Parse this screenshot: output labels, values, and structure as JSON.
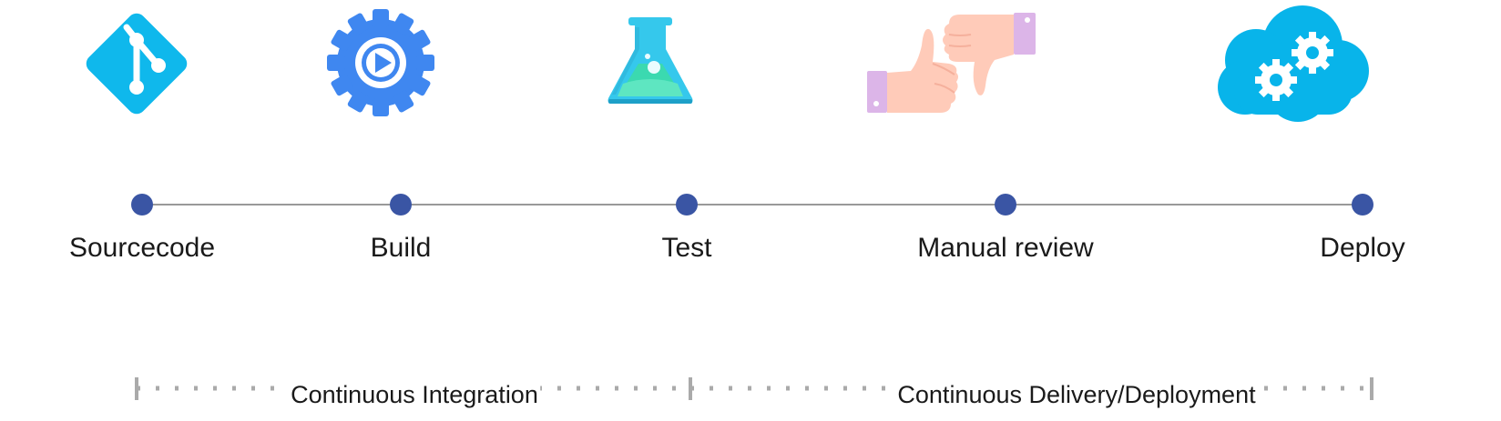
{
  "stages": [
    {
      "label": "Sourcecode",
      "icon": "git-icon"
    },
    {
      "label": "Build",
      "icon": "gear-play-icon"
    },
    {
      "label": "Test",
      "icon": "flask-icon"
    },
    {
      "label": "Manual review",
      "icon": "thumbs-up-down-icon"
    },
    {
      "label": "Deploy",
      "icon": "cloud-gears-icon"
    }
  ],
  "phases": {
    "ci": "Continuous Integration",
    "cd": "Continuous Delivery/Deployment"
  },
  "colors": {
    "dot": "#3a55a4",
    "line": "#999999",
    "git": "#0fb8ec",
    "gear": "#3f87f0",
    "flask": "#35c8ec",
    "flask_liquid": "#3bd9b0",
    "cloud": "#08b4ea",
    "skin": "#ffcbb9",
    "cuff": "#dcb5e8",
    "bracket": "#aaaaaa"
  }
}
